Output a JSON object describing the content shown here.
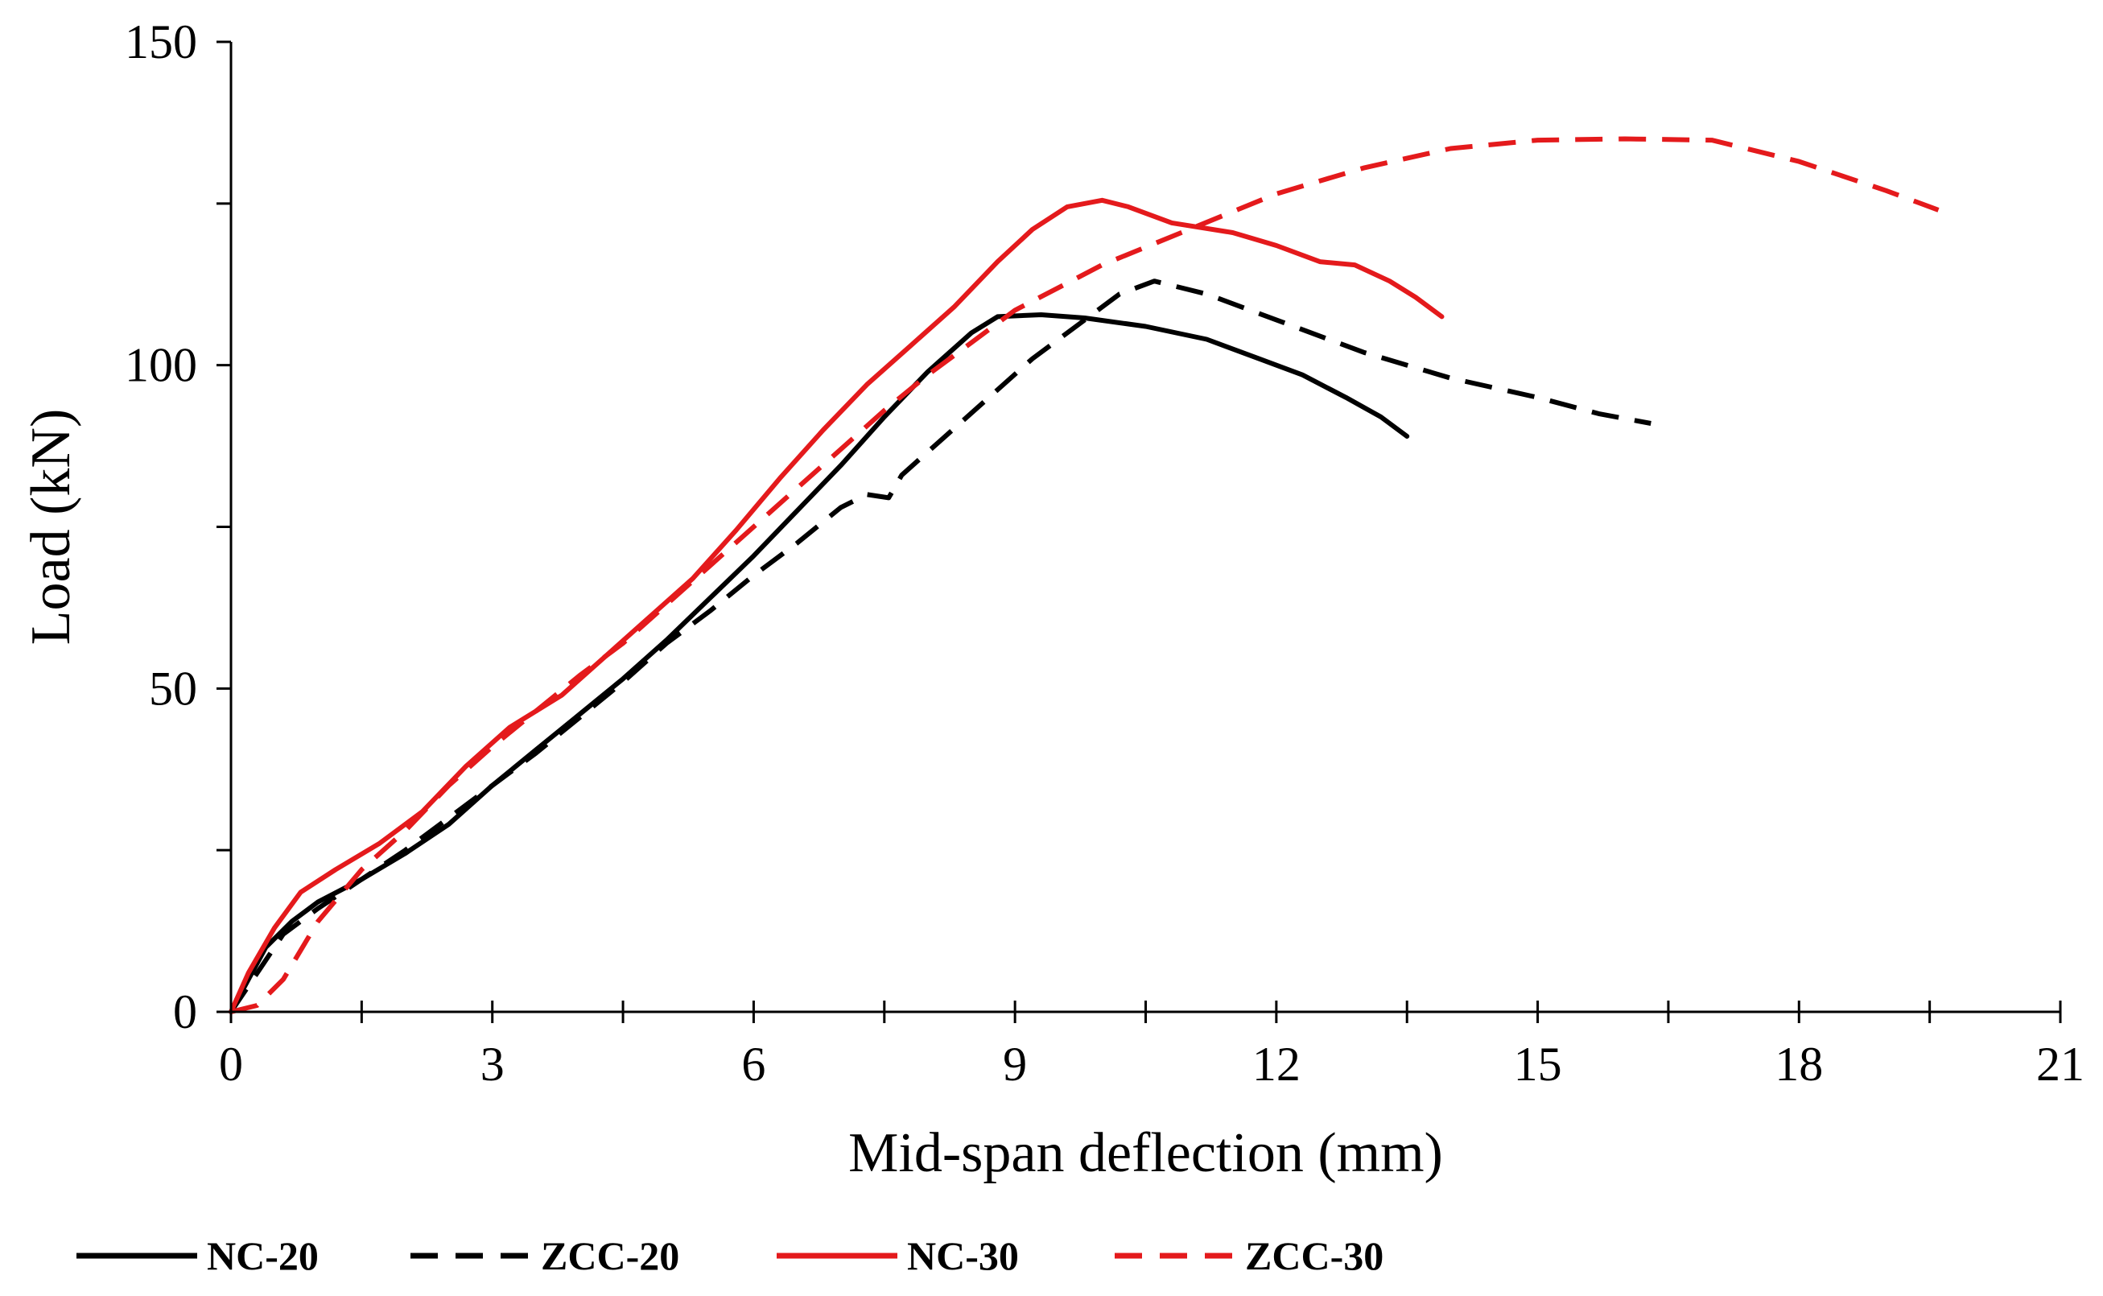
{
  "chart_data": {
    "type": "line",
    "title": "",
    "xlabel": "Mid-span deflection (mm)",
    "ylabel": "Load (kN)",
    "xlim": [
      0,
      21
    ],
    "ylim": [
      0,
      150
    ],
    "xticks": [
      0,
      3,
      6,
      9,
      12,
      15,
      18,
      21
    ],
    "xminor": [
      1.5,
      4.5,
      7.5,
      10.5,
      13.5,
      16.5,
      19.5
    ],
    "yticks": [
      0,
      50,
      100,
      150
    ],
    "yminor": [
      25,
      75,
      125
    ],
    "grid": false,
    "legend_position": "bottom",
    "series": [
      {
        "name": "NC-20",
        "color": "#000000",
        "dash": "solid",
        "points": [
          [
            0,
            0
          ],
          [
            0.2,
            5
          ],
          [
            0.4,
            10
          ],
          [
            0.7,
            14
          ],
          [
            1.0,
            17
          ],
          [
            1.5,
            20.5
          ],
          [
            2.0,
            24.5
          ],
          [
            2.5,
            29
          ],
          [
            3.0,
            35
          ],
          [
            3.5,
            40.5
          ],
          [
            4.0,
            46
          ],
          [
            4.5,
            51.5
          ],
          [
            5.0,
            57.5
          ],
          [
            5.5,
            64
          ],
          [
            6.0,
            70.5
          ],
          [
            6.5,
            77.5
          ],
          [
            7.0,
            84.5
          ],
          [
            7.5,
            92
          ],
          [
            8.0,
            99
          ],
          [
            8.5,
            105
          ],
          [
            8.8,
            107.5
          ],
          [
            9.3,
            107.8
          ],
          [
            9.8,
            107.3
          ],
          [
            10.5,
            106
          ],
          [
            11.2,
            104
          ],
          [
            11.8,
            101
          ],
          [
            12.3,
            98.5
          ],
          [
            12.8,
            95
          ],
          [
            13.2,
            92
          ],
          [
            13.5,
            89
          ]
        ]
      },
      {
        "name": "ZCC-20",
        "color": "#000000",
        "dash": "dashed",
        "points": [
          [
            0,
            0
          ],
          [
            0.3,
            6
          ],
          [
            0.6,
            12
          ],
          [
            1.0,
            16
          ],
          [
            1.5,
            20.5
          ],
          [
            2.0,
            25
          ],
          [
            2.5,
            30
          ],
          [
            3.0,
            35
          ],
          [
            3.5,
            40
          ],
          [
            4.0,
            45.5
          ],
          [
            4.5,
            51
          ],
          [
            5.0,
            57
          ],
          [
            5.5,
            62
          ],
          [
            6.0,
            67.5
          ],
          [
            6.5,
            72.5
          ],
          [
            7.0,
            78
          ],
          [
            7.3,
            80
          ],
          [
            7.55,
            79.5
          ],
          [
            7.7,
            83
          ],
          [
            8.2,
            89
          ],
          [
            8.7,
            95
          ],
          [
            9.2,
            101
          ],
          [
            9.7,
            106
          ],
          [
            10.2,
            111
          ],
          [
            10.6,
            113
          ],
          [
            11.2,
            111
          ],
          [
            12.0,
            107
          ],
          [
            13.0,
            102
          ],
          [
            14.0,
            98
          ],
          [
            15.0,
            95
          ],
          [
            15.7,
            92.5
          ],
          [
            16.3,
            91
          ]
        ]
      },
      {
        "name": "NC-30",
        "color": "#e41a1c",
        "dash": "solid",
        "points": [
          [
            0,
            0
          ],
          [
            0.2,
            6
          ],
          [
            0.5,
            13
          ],
          [
            0.8,
            18.5
          ],
          [
            1.2,
            22
          ],
          [
            1.7,
            26
          ],
          [
            2.2,
            31
          ],
          [
            2.7,
            38
          ],
          [
            3.2,
            44
          ],
          [
            3.8,
            49
          ],
          [
            4.3,
            55
          ],
          [
            4.8,
            61
          ],
          [
            5.3,
            67
          ],
          [
            5.8,
            74.5
          ],
          [
            6.3,
            82.5
          ],
          [
            6.8,
            90
          ],
          [
            7.3,
            97
          ],
          [
            7.8,
            103
          ],
          [
            8.3,
            109
          ],
          [
            8.8,
            116
          ],
          [
            9.2,
            121
          ],
          [
            9.6,
            124.5
          ],
          [
            10.0,
            125.5
          ],
          [
            10.3,
            124.5
          ],
          [
            10.8,
            122
          ],
          [
            11.5,
            120.5
          ],
          [
            12.0,
            118.5
          ],
          [
            12.5,
            116
          ],
          [
            12.9,
            115.5
          ],
          [
            13.3,
            113
          ],
          [
            13.6,
            110.5
          ],
          [
            13.9,
            107.5
          ]
        ]
      },
      {
        "name": "ZCC-30",
        "color": "#e41a1c",
        "dash": "dashed",
        "points": [
          [
            0,
            0
          ],
          [
            0.3,
            1
          ],
          [
            0.6,
            5
          ],
          [
            1.0,
            14
          ],
          [
            1.5,
            22
          ],
          [
            2.0,
            28
          ],
          [
            2.5,
            35
          ],
          [
            3.0,
            41
          ],
          [
            3.5,
            46.5
          ],
          [
            4.0,
            52
          ],
          [
            4.5,
            57
          ],
          [
            5.0,
            63
          ],
          [
            5.5,
            69
          ],
          [
            6.0,
            75
          ],
          [
            6.5,
            81
          ],
          [
            7.0,
            87
          ],
          [
            7.5,
            93
          ],
          [
            8.0,
            98.5
          ],
          [
            8.5,
            103.5
          ],
          [
            9.0,
            108.5
          ],
          [
            9.5,
            112
          ],
          [
            10.0,
            115.5
          ],
          [
            11.0,
            121
          ],
          [
            12.0,
            126.5
          ],
          [
            13.0,
            130.5
          ],
          [
            14.0,
            133.5
          ],
          [
            15.0,
            134.8
          ],
          [
            16.0,
            135
          ],
          [
            17.0,
            134.8
          ],
          [
            18.0,
            131.5
          ],
          [
            19.0,
            127
          ],
          [
            19.6,
            124
          ]
        ]
      }
    ]
  }
}
